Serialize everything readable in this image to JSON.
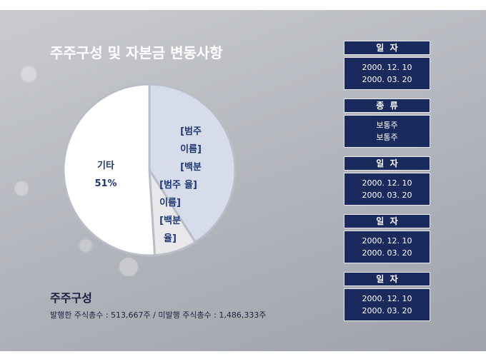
{
  "title": "주주구성 및 자본금 변동사항",
  "chart_data": {
    "type": "pie",
    "categories": [
      "[범주 이름]",
      "[범주 이름]",
      "기타"
    ],
    "values": [
      41,
      8,
      51
    ],
    "value_labels": [
      "[백분율]",
      "[백분율]",
      "51%"
    ],
    "colors": [
      "#d6dce9",
      "#e9e9eb",
      "#ffffff"
    ]
  },
  "summary": {
    "title": "주주구성",
    "note": "발행한 주식총수 : 513,667주 / 미발행 주식총수 : 1,486,333주"
  },
  "panels": [
    {
      "header": "일  자",
      "lines": [
        "2000. 12. 10",
        "2000. 03. 20"
      ]
    },
    {
      "header": "종  류",
      "lines": [
        "보통주",
        "보통주"
      ]
    },
    {
      "header": "일  자",
      "lines": [
        "2000. 12. 10",
        "2000. 03. 20"
      ]
    },
    {
      "header": "일  자",
      "lines": [
        "2000. 12. 10",
        "2000. 03. 20"
      ]
    },
    {
      "header": "일  자",
      "lines": [
        "2000. 12. 10",
        "2000. 03. 20"
      ]
    }
  ]
}
